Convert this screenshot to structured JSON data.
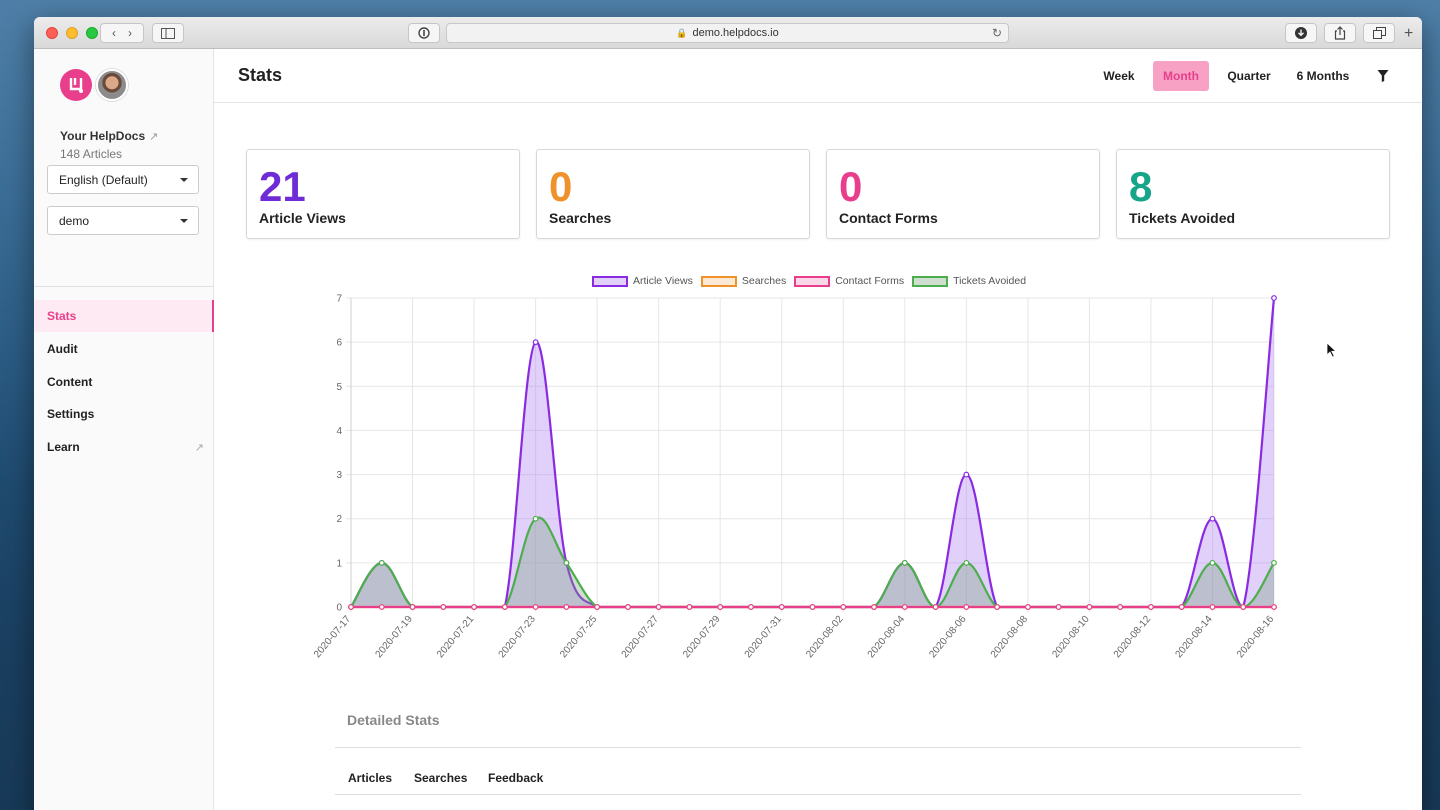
{
  "browser": {
    "url": "demo.helpdocs.io"
  },
  "sidebar": {
    "helpdocs_name": "Your HelpDocs",
    "article_count": "148 Articles",
    "language_select": "English (Default)",
    "site_select": "demo",
    "nav": [
      {
        "label": "Stats",
        "active": true
      },
      {
        "label": "Audit",
        "active": false
      },
      {
        "label": "Content",
        "active": false
      },
      {
        "label": "Settings",
        "active": false
      },
      {
        "label": "Learn",
        "active": false,
        "external": true
      }
    ]
  },
  "header": {
    "title": "Stats",
    "periods": [
      {
        "label": "Week",
        "active": false
      },
      {
        "label": "Month",
        "active": true
      },
      {
        "label": "Quarter",
        "active": false
      },
      {
        "label": "6 Months",
        "active": false
      }
    ]
  },
  "cards": [
    {
      "value": "21",
      "label": "Article Views",
      "color": "#6f2bd6"
    },
    {
      "value": "0",
      "label": "Searches",
      "color": "#f0922b"
    },
    {
      "value": "0",
      "label": "Contact Forms",
      "color": "#e83e8c"
    },
    {
      "value": "8",
      "label": "Tickets Avoided",
      "color": "#17a589"
    }
  ],
  "chart_data": {
    "type": "area",
    "x": [
      "2020-07-17",
      "2020-07-18",
      "2020-07-19",
      "2020-07-20",
      "2020-07-21",
      "2020-07-22",
      "2020-07-23",
      "2020-07-24",
      "2020-07-25",
      "2020-07-26",
      "2020-07-27",
      "2020-07-28",
      "2020-07-29",
      "2020-07-30",
      "2020-07-31",
      "2020-08-01",
      "2020-08-02",
      "2020-08-03",
      "2020-08-04",
      "2020-08-05",
      "2020-08-06",
      "2020-08-07",
      "2020-08-08",
      "2020-08-09",
      "2020-08-10",
      "2020-08-11",
      "2020-08-12",
      "2020-08-13",
      "2020-08-14",
      "2020-08-15",
      "2020-08-16"
    ],
    "x_tick_labels": [
      "2020-07-17",
      "2020-07-19",
      "2020-07-21",
      "2020-07-23",
      "2020-07-25",
      "2020-07-27",
      "2020-07-29",
      "2020-07-31",
      "2020-08-02",
      "2020-08-04",
      "2020-08-06",
      "2020-08-08",
      "2020-08-10",
      "2020-08-12",
      "2020-08-14",
      "2020-08-16"
    ],
    "ylim": [
      0,
      7
    ],
    "y_ticks": [
      "0",
      "1",
      "2",
      "3",
      "4",
      "5",
      "6",
      "7"
    ],
    "grid": true,
    "legend_position": "top",
    "series": [
      {
        "name": "Article Views",
        "color": "#8a2be2",
        "fill": "rgba(170,120,240,0.35)",
        "values": [
          0,
          1,
          0,
          0,
          0,
          0,
          6,
          1,
          0,
          0,
          0,
          0,
          0,
          0,
          0,
          0,
          0,
          0,
          1,
          0,
          3,
          0,
          0,
          0,
          0,
          0,
          0,
          0,
          2,
          0,
          7
        ]
      },
      {
        "name": "Searches",
        "color": "#f0922b",
        "fill": "rgba(240,146,43,0.2)",
        "values": [
          0,
          0,
          0,
          0,
          0,
          0,
          0,
          0,
          0,
          0,
          0,
          0,
          0,
          0,
          0,
          0,
          0,
          0,
          0,
          0,
          0,
          0,
          0,
          0,
          0,
          0,
          0,
          0,
          0,
          0,
          0
        ]
      },
      {
        "name": "Contact Forms",
        "color": "#e83e8c",
        "fill": "rgba(232,62,140,0.2)",
        "values": [
          0,
          0,
          0,
          0,
          0,
          0,
          0,
          0,
          0,
          0,
          0,
          0,
          0,
          0,
          0,
          0,
          0,
          0,
          0,
          0,
          0,
          0,
          0,
          0,
          0,
          0,
          0,
          0,
          0,
          0,
          0
        ]
      },
      {
        "name": "Tickets Avoided",
        "color": "#4cae4c",
        "fill": "rgba(120,160,120,0.35)",
        "values": [
          0,
          1,
          0,
          0,
          0,
          0,
          2,
          1,
          0,
          0,
          0,
          0,
          0,
          0,
          0,
          0,
          0,
          0,
          1,
          0,
          1,
          0,
          0,
          0,
          0,
          0,
          0,
          0,
          1,
          0,
          1
        ]
      }
    ]
  },
  "detailed": {
    "title": "Detailed Stats",
    "tabs": [
      "Articles",
      "Searches",
      "Feedback"
    ]
  },
  "icons": {
    "back": "chevron-left-icon",
    "forward": "chevron-right-icon",
    "sidebar": "sidebar-icon",
    "download": "download-icon",
    "share": "share-icon",
    "tabs": "tabs-icon",
    "filter": "filter-icon"
  }
}
